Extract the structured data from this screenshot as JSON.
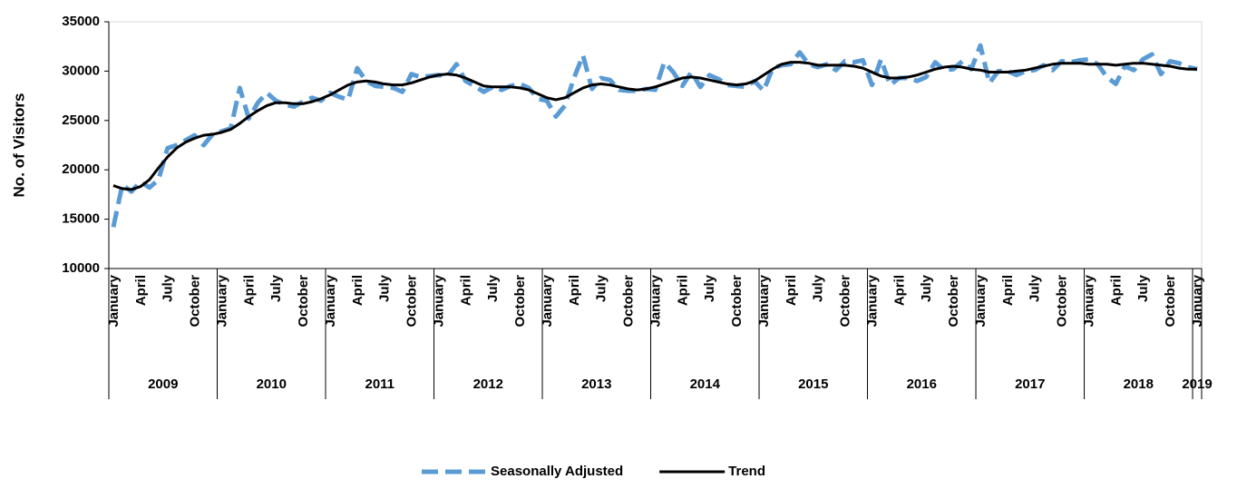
{
  "chart_data": {
    "type": "line",
    "y_label": "No. of Visitors",
    "categories": [
      "January",
      null,
      null,
      "April",
      null,
      null,
      "July",
      null,
      null,
      "October",
      null,
      null,
      "January",
      null,
      null,
      "April",
      null,
      null,
      "July",
      null,
      null,
      "October",
      null,
      null,
      "January",
      null,
      null,
      "April",
      null,
      null,
      "July",
      null,
      null,
      "October",
      null,
      null,
      "January",
      null,
      null,
      "April",
      null,
      null,
      "July",
      null,
      null,
      "October",
      null,
      null,
      "January",
      null,
      null,
      "April",
      null,
      null,
      "July",
      null,
      null,
      "October",
      null,
      null,
      "January",
      null,
      null,
      "April",
      null,
      null,
      "July",
      null,
      null,
      "October",
      null,
      null,
      "January",
      null,
      null,
      "April",
      null,
      null,
      "July",
      null,
      null,
      "October",
      null,
      null,
      "January",
      null,
      null,
      "April",
      null,
      null,
      "July",
      null,
      null,
      "October",
      null,
      null,
      "January",
      null,
      null,
      "April",
      null,
      null,
      "July",
      null,
      null,
      "October",
      null,
      null,
      "January",
      null,
      null,
      "April",
      null,
      null,
      "July",
      null,
      null,
      "October",
      null,
      null,
      "January"
    ],
    "x_groups": [
      "2009",
      "2010",
      "2011",
      "2012",
      "2013",
      "2014",
      "2015",
      "2016",
      "2017",
      "2018",
      "2019"
    ],
    "series": [
      {
        "name": "Seasonally Adjusted",
        "color": "#5b9bd5",
        "dashed": true,
        "values": [
          14200,
          18500,
          17800,
          18800,
          18200,
          19000,
          22200,
          22500,
          23000,
          23500,
          22500,
          23600,
          23900,
          24200,
          28300,
          25200,
          26800,
          27800,
          27000,
          26600,
          26400,
          26900,
          27300,
          27000,
          27800,
          27400,
          27100,
          30300,
          29000,
          28500,
          28400,
          28300,
          27900,
          29700,
          29400,
          29500,
          29600,
          29500,
          30700,
          29000,
          28500,
          27900,
          28400,
          28100,
          28500,
          28700,
          28300,
          27200,
          27000,
          25400,
          26500,
          29300,
          31600,
          28200,
          29300,
          29100,
          28100,
          28000,
          28000,
          28200,
          28100,
          30900,
          29900,
          28500,
          29900,
          28400,
          29600,
          29200,
          28600,
          28500,
          28400,
          29000,
          28000,
          30300,
          30600,
          30700,
          31900,
          30700,
          30400,
          30700,
          30100,
          31000,
          30900,
          31100,
          28600,
          31200,
          28600,
          29300,
          29300,
          29000,
          29400,
          30900,
          30100,
          30200,
          31000,
          30200,
          32600,
          28800,
          30000,
          30000,
          29600,
          30000,
          30100,
          30600,
          30100,
          31000,
          30900,
          31100,
          31200,
          30700,
          29400,
          28700,
          30500,
          30100,
          31200,
          31700,
          29700,
          31000,
          30800,
          30400,
          30200
        ]
      },
      {
        "name": "Trend",
        "color": "#000000",
        "dashed": false,
        "values": [
          18400,
          18100,
          18000,
          18300,
          19000,
          20200,
          21300,
          22200,
          22800,
          23200,
          23500,
          23600,
          23800,
          24100,
          24700,
          25400,
          26000,
          26500,
          26800,
          26800,
          26700,
          26700,
          26900,
          27200,
          27600,
          28100,
          28600,
          28900,
          29000,
          28900,
          28700,
          28600,
          28600,
          28800,
          29100,
          29400,
          29600,
          29700,
          29600,
          29300,
          28900,
          28500,
          28400,
          28400,
          28400,
          28300,
          28100,
          27700,
          27300,
          27100,
          27300,
          27800,
          28300,
          28600,
          28700,
          28600,
          28400,
          28200,
          28100,
          28200,
          28400,
          28700,
          29000,
          29300,
          29400,
          29300,
          29100,
          28900,
          28700,
          28600,
          28700,
          29000,
          29600,
          30200,
          30700,
          30900,
          30900,
          30800,
          30600,
          30600,
          30600,
          30600,
          30500,
          30300,
          29900,
          29500,
          29300,
          29300,
          29400,
          29600,
          29900,
          30200,
          30400,
          30500,
          30400,
          30200,
          30100,
          29900,
          29900,
          29900,
          30000,
          30100,
          30300,
          30500,
          30700,
          30800,
          30800,
          30800,
          30700,
          30700,
          30700,
          30600,
          30700,
          30800,
          30800,
          30700,
          30600,
          30500,
          30300,
          30200,
          30200
        ]
      }
    ],
    "ylim": [
      10000,
      35000
    ],
    "yticks": [
      10000,
      15000,
      20000,
      25000,
      30000,
      35000
    ],
    "grid": false
  }
}
